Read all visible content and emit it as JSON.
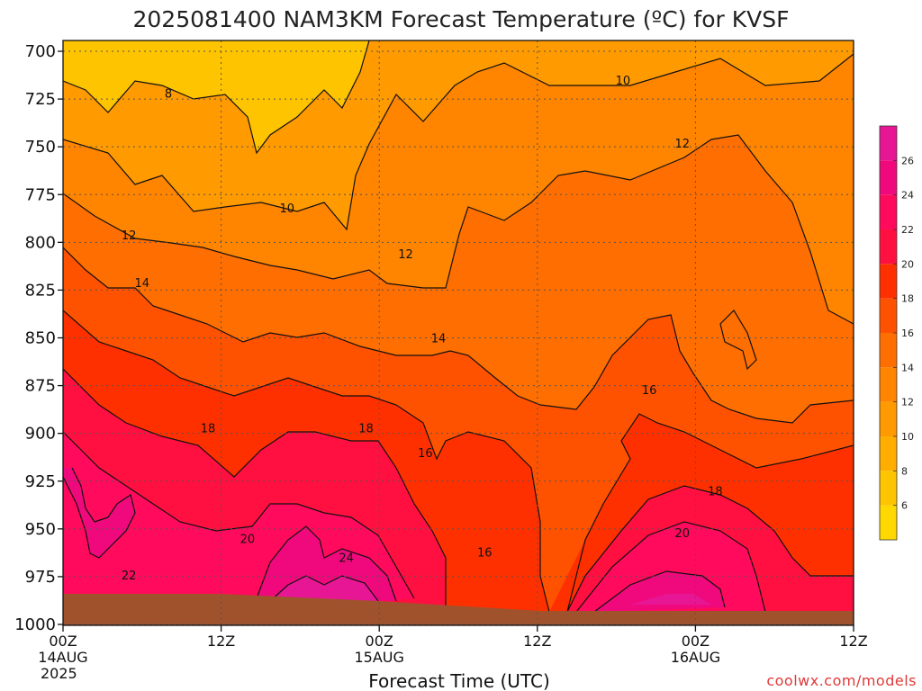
{
  "title": "2025081400 NAM3KM Forecast Temperature (ºC) for KVSF",
  "xlabel": "Forecast Time (UTC)",
  "credit": "coolwx.com/models",
  "colors": {
    "frame": "#111111",
    "ground": "#a0522d",
    "contour": "#111111",
    "grid": "#555555"
  },
  "chart_data": {
    "type": "heatmap",
    "title": "2025081400 NAM3KM Forecast Temperature (ºC) for KVSF",
    "xlabel": "Forecast Time (UTC)",
    "ylabel": "",
    "y_axis": {
      "ticks": [
        "700",
        "725",
        "750",
        "775",
        "800",
        "825",
        "850",
        "875",
        "900",
        "925",
        "950",
        "975",
        "1000"
      ],
      "range": [
        700,
        1000
      ],
      "inverted": true
    },
    "x_axis": {
      "ticks": [
        {
          "hour": 0,
          "lines": [
            "00Z",
            "14AUG",
            "2025"
          ]
        },
        {
          "hour": 12,
          "lines": [
            "12Z"
          ]
        },
        {
          "hour": 24,
          "lines": [
            "00Z",
            "15AUG"
          ]
        },
        {
          "hour": 36,
          "lines": [
            "12Z"
          ]
        },
        {
          "hour": 48,
          "lines": [
            "00Z",
            "16AUG"
          ]
        },
        {
          "hour": 60,
          "lines": [
            "12Z"
          ]
        }
      ],
      "range": [
        0,
        60
      ]
    },
    "colorbar": {
      "levels": [
        4,
        6,
        8,
        10,
        12,
        14,
        16,
        18,
        20,
        22,
        24,
        26,
        28
      ],
      "labels": [
        "6",
        "8",
        "10",
        "12",
        "14",
        "16",
        "18",
        "20",
        "22",
        "24",
        "26"
      ],
      "colors": [
        "#ffd800",
        "#ffc400",
        "#ffae00",
        "#ff9a00",
        "#ff8400",
        "#ff6e00",
        "#ff5200",
        "#ff3000",
        "#ff1040",
        "#ff0a5c",
        "#f0097c",
        "#e61694"
      ]
    },
    "contour_labels": [
      {
        "text": "8",
        "hour": 8.0,
        "p": 722
      },
      {
        "text": "10",
        "hour": 17.0,
        "p": 782
      },
      {
        "text": "10",
        "hour": 42.5,
        "p": 715
      },
      {
        "text": "12",
        "hour": 5.0,
        "p": 796
      },
      {
        "text": "12",
        "hour": 26.0,
        "p": 806
      },
      {
        "text": "12",
        "hour": 47.0,
        "p": 748
      },
      {
        "text": "14",
        "hour": 6.0,
        "p": 821
      },
      {
        "text": "14",
        "hour": 28.5,
        "p": 850
      },
      {
        "text": "16",
        "hour": 27.5,
        "p": 910
      },
      {
        "text": "16",
        "hour": 32.0,
        "p": 962
      },
      {
        "text": "16",
        "hour": 44.5,
        "p": 877
      },
      {
        "text": "18",
        "hour": 11.0,
        "p": 897
      },
      {
        "text": "18",
        "hour": 23.0,
        "p": 897
      },
      {
        "text": "18",
        "hour": 49.5,
        "p": 930
      },
      {
        "text": "20",
        "hour": 14.0,
        "p": 955
      },
      {
        "text": "20",
        "hour": 47.0,
        "p": 952
      },
      {
        "text": "22",
        "hour": 5.0,
        "p": 974
      },
      {
        "text": "24",
        "hour": 21.5,
        "p": 965
      }
    ],
    "surface_pressure": [
      {
        "hour": 0,
        "p": 984
      },
      {
        "hour": 12,
        "p": 984
      },
      {
        "hour": 24,
        "p": 987
      },
      {
        "hour": 36,
        "p": 991
      },
      {
        "hour": 48,
        "p": 991
      },
      {
        "hour": 60,
        "p": 991
      }
    ]
  }
}
